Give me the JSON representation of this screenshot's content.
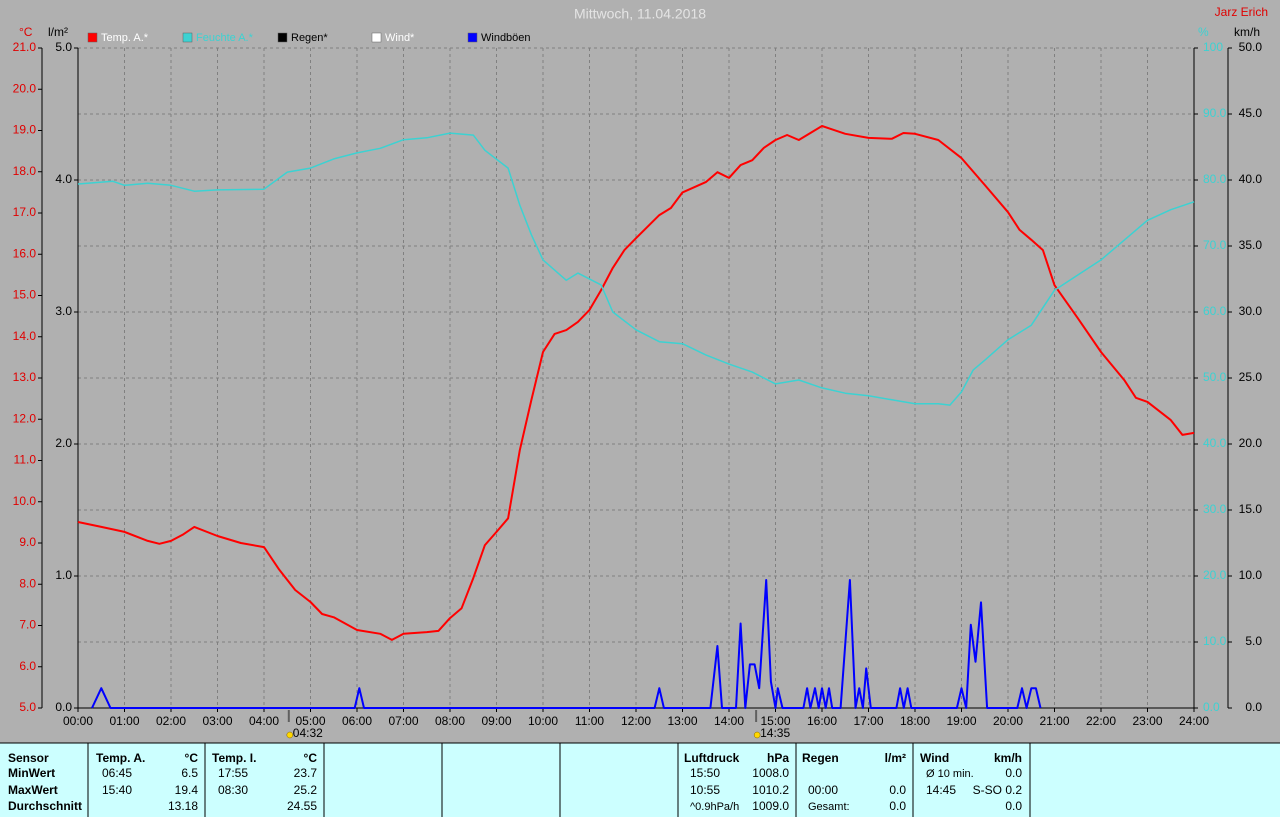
{
  "chart_data": {
    "type": "line",
    "title": "Mittwoch, 11.04.2018",
    "author": "Jarz Erich",
    "y_unit": "°C",
    "y2_unit": "%",
    "y3_unit": "l/m²",
    "y4_unit": "km/h",
    "xlim": [
      0,
      24
    ],
    "xticks": [
      {
        "value": 0,
        "label": "00:00"
      },
      {
        "value": 1,
        "label": "01:00"
      },
      {
        "value": 2,
        "label": "02:00"
      },
      {
        "value": 3,
        "label": "03:00"
      },
      {
        "value": 4,
        "label": "04:00"
      },
      {
        "value": 5,
        "label": "05:00"
      },
      {
        "value": 6,
        "label": "06:00"
      },
      {
        "value": 7,
        "label": "07:00"
      },
      {
        "value": 8,
        "label": "08:00"
      },
      {
        "value": 9,
        "label": "09:00"
      },
      {
        "value": 10,
        "label": "10:00"
      },
      {
        "value": 11,
        "label": "11:00"
      },
      {
        "value": 12,
        "label": "12:00"
      },
      {
        "value": 13,
        "label": "13:00"
      },
      {
        "value": 14,
        "label": "14:00"
      },
      {
        "value": 15,
        "label": "15:00"
      },
      {
        "value": 16,
        "label": "16:00"
      },
      {
        "value": 17,
        "label": "17:00"
      },
      {
        "value": 18,
        "label": "18:00"
      },
      {
        "value": 19,
        "label": "19:00"
      },
      {
        "value": 20,
        "label": "20:00"
      },
      {
        "value": 21,
        "label": "21:00"
      },
      {
        "value": 22,
        "label": "22:00"
      },
      {
        "value": 23,
        "label": "23:00"
      },
      {
        "value": 24,
        "label": "24:00"
      }
    ],
    "ylim": [
      5,
      21
    ],
    "yticks": [
      {
        "value": 5,
        "label": "5.0"
      },
      {
        "value": 6,
        "label": "6.0"
      },
      {
        "value": 7,
        "label": "7.0"
      },
      {
        "value": 8,
        "label": "8.0"
      },
      {
        "value": 9,
        "label": "9.0"
      },
      {
        "value": 10,
        "label": "10.0"
      },
      {
        "value": 11,
        "label": "11.0"
      },
      {
        "value": 12,
        "label": "12.0"
      },
      {
        "value": 13,
        "label": "13.0"
      },
      {
        "value": 14,
        "label": "14.0"
      },
      {
        "value": 15,
        "label": "15.0"
      },
      {
        "value": 16,
        "label": "16.0"
      },
      {
        "value": 17,
        "label": "17.0"
      },
      {
        "value": 18,
        "label": "18.0"
      },
      {
        "value": 19,
        "label": "19.0"
      },
      {
        "value": 20,
        "label": "20.0"
      },
      {
        "value": 21,
        "label": "21.0"
      }
    ],
    "y2lim": [
      0,
      100
    ],
    "y2ticks": [
      {
        "value": 0,
        "label": "0.0"
      },
      {
        "value": 10,
        "label": "10.0"
      },
      {
        "value": 20,
        "label": "20.0"
      },
      {
        "value": 30,
        "label": "30.0"
      },
      {
        "value": 40,
        "label": "40.0"
      },
      {
        "value": 50,
        "label": "50.0"
      },
      {
        "value": 60,
        "label": "60.0"
      },
      {
        "value": 70,
        "label": "70.0"
      },
      {
        "value": 80,
        "label": "80.0"
      },
      {
        "value": 90,
        "label": "90.0"
      },
      100
    ],
    "y3lim": [
      0,
      5
    ],
    "y3ticks": [
      {
        "value": 0,
        "label": "0.0"
      },
      {
        "value": 1,
        "label": "1.0"
      },
      {
        "value": 2,
        "label": "2.0"
      },
      {
        "value": 3,
        "label": "3.0"
      },
      {
        "value": 4,
        "label": "4.0"
      },
      {
        "value": 5,
        "label": "5.0"
      }
    ],
    "y4lim": [
      0,
      50
    ],
    "y4ticks": [
      {
        "value": 0,
        "label": "0.0"
      },
      {
        "value": 5,
        "label": "5.0"
      },
      {
        "value": 10,
        "label": "10.0"
      },
      {
        "value": 15,
        "label": "15.0"
      },
      {
        "value": 20,
        "label": "20.0"
      },
      {
        "value": 25,
        "label": "25.0"
      },
      {
        "value": 30,
        "label": "30.0"
      },
      {
        "value": 35,
        "label": "35.0"
      },
      {
        "value": 40,
        "label": "40.0"
      },
      {
        "value": 45,
        "label": "45.0"
      },
      {
        "value": 50,
        "label": "50.0"
      }
    ],
    "grid": true,
    "annotations": [
      {
        "x": 4.5333,
        "label": "04:32"
      },
      {
        "x": 14.5833,
        "label": "14:35"
      }
    ],
    "series": [
      {
        "name": "Temp. A.*",
        "color": "#ff0000",
        "axis": "y",
        "x": [
          0,
          0.5,
          1,
          1.5,
          1.75,
          2,
          2.25,
          2.5,
          3,
          3.5,
          4,
          4.33,
          4.67,
          5,
          5.25,
          5.5,
          6,
          6.5,
          6.75,
          7,
          7.5,
          7.75,
          8,
          8.25,
          8.5,
          8.75,
          9,
          9.25,
          9.5,
          9.75,
          10,
          10.25,
          10.5,
          10.75,
          11,
          11.25,
          11.5,
          11.75,
          12,
          12.5,
          12.75,
          13,
          13.5,
          13.75,
          14,
          14.25,
          14.5,
          14.75,
          15,
          15.25,
          15.5,
          15.75,
          16,
          16.5,
          17,
          17.5,
          17.75,
          18,
          18.5,
          19,
          19.5,
          20,
          20.25,
          20.5,
          20.75,
          21,
          21.5,
          22,
          22.5,
          22.75,
          23,
          23.5,
          23.75,
          24
        ],
        "values": [
          9.51,
          9.39,
          9.27,
          9.05,
          8.98,
          9.05,
          9.2,
          9.39,
          9.17,
          9.0,
          8.9,
          8.35,
          7.86,
          7.57,
          7.28,
          7.2,
          6.89,
          6.8,
          6.65,
          6.8,
          6.84,
          6.87,
          7.18,
          7.42,
          8.15,
          8.95,
          9.27,
          9.6,
          11.25,
          12.47,
          13.63,
          14.07,
          14.16,
          14.36,
          14.65,
          15.13,
          15.67,
          16.1,
          16.39,
          16.95,
          17.12,
          17.5,
          17.75,
          17.99,
          17.85,
          18.16,
          18.28,
          18.58,
          18.77,
          18.89,
          18.77,
          18.94,
          19.11,
          18.92,
          18.82,
          18.8,
          18.94,
          18.92,
          18.77,
          18.33,
          17.68,
          17.02,
          16.59,
          16.35,
          16.1,
          15.25,
          14.45,
          13.63,
          12.95,
          12.52,
          12.42,
          11.98,
          11.62,
          11.67
        ]
      },
      {
        "name": "Feuchte A.*",
        "color": "#3cd2d2",
        "axis": "y2",
        "x": [
          0,
          0.75,
          1,
          1.5,
          2,
          2.5,
          3,
          4,
          4.5,
          5,
          5.5,
          6,
          6.5,
          7,
          7.5,
          8,
          8.5,
          8.75,
          9.25,
          9.5,
          9.75,
          10,
          10.5,
          10.75,
          11.25,
          11.5,
          12,
          12.5,
          13,
          13.5,
          14,
          14.5,
          15,
          15.5,
          16,
          16.5,
          17,
          17.5,
          18,
          18.5,
          18.75,
          19,
          19.25,
          19.5,
          20,
          20.5,
          21,
          21.5,
          22,
          22.5,
          23,
          23.5,
          24
        ],
        "values": [
          79.4,
          79.8,
          79.2,
          79.5,
          79.2,
          78.3,
          78.5,
          78.6,
          81.2,
          81.8,
          83.2,
          84.1,
          84.8,
          86.1,
          86.4,
          87.1,
          86.8,
          84.5,
          81.8,
          76.2,
          71.7,
          67.9,
          64.8,
          65.9,
          64.1,
          60,
          57.3,
          55.5,
          55.2,
          53.5,
          52.1,
          50.9,
          49.1,
          49.7,
          48.5,
          47.7,
          47.3,
          46.7,
          46.1,
          46.1,
          45.9,
          47.9,
          51.2,
          52.7,
          55.8,
          58,
          63.3,
          65.6,
          67.9,
          70.9,
          73.9,
          75.5,
          76.7
        ]
      },
      {
        "name": "Regen*",
        "color": "#000000",
        "axis": "y3",
        "x": [],
        "values": []
      },
      {
        "name": "Wind*",
        "color": "#ffffff",
        "axis": "y4",
        "x": [],
        "values": []
      },
      {
        "name": "Windböen",
        "color": "#0000ff",
        "axis": "y4",
        "x": [
          0.3,
          0.5,
          0.7,
          5.95,
          6.05,
          6.15,
          12.4,
          12.5,
          12.6,
          13.6,
          13.75,
          13.85,
          14.15,
          14.25,
          14.35,
          14.45,
          14.55,
          14.65,
          14.8,
          14.9,
          15.0,
          15.05,
          15.15,
          15.6,
          15.68,
          15.75,
          15.85,
          15.93,
          16.0,
          16.08,
          16.15,
          16.22,
          16.4,
          16.6,
          16.72,
          16.8,
          16.88,
          16.95,
          17.05,
          17.6,
          17.68,
          17.76,
          17.84,
          17.92,
          18.9,
          19.0,
          19.1,
          19.2,
          19.3,
          19.42,
          19.55,
          20.2,
          20.3,
          20.4,
          20.5,
          20.6,
          20.7
        ],
        "values": [
          0,
          1.5,
          0,
          0,
          1.5,
          0,
          0,
          1.5,
          0,
          0,
          4.7,
          0,
          0,
          6.4,
          0,
          3.3,
          3.3,
          1.5,
          9.7,
          2,
          0,
          1.5,
          0,
          0,
          1.5,
          0,
          1.5,
          0,
          1.5,
          0,
          1.5,
          0,
          0,
          9.7,
          0,
          1.5,
          0,
          3,
          0,
          0,
          1.5,
          0,
          1.5,
          0,
          0,
          1.5,
          0,
          6.3,
          3.5,
          8,
          0,
          0,
          1.5,
          0,
          1.5,
          1.5,
          0
        ]
      }
    ]
  },
  "table": {
    "row_labels": [
      "Sensor",
      "MinWert",
      "MaxWert",
      "Durchschnitt"
    ],
    "groups": [
      {
        "name": "Temp. A.",
        "unit": "°C",
        "rows": [
          [
            "06:45",
            "6.5"
          ],
          [
            "15:40",
            "19.4"
          ],
          [
            null,
            "13.18"
          ]
        ]
      },
      {
        "name": "Temp. I.",
        "unit": "°C",
        "rows": [
          [
            "17:55",
            "23.7"
          ],
          [
            "08:30",
            "25.2"
          ],
          [
            null,
            "24.55"
          ]
        ]
      },
      {
        "name": "Luftdruck",
        "unit": "hPa",
        "rows": [
          [
            "15:50",
            "1008.0"
          ],
          [
            "10:55",
            "1010.2"
          ],
          [
            "^0.9hPa/h",
            "1009.0"
          ]
        ]
      },
      {
        "name": "Regen",
        "unit": "l/m²",
        "rows": [
          [
            null,
            null
          ],
          [
            "00:00",
            "0.0"
          ],
          [
            "Gesamt:",
            "0.0"
          ]
        ]
      },
      {
        "name": "Wind",
        "unit": "km/h",
        "rows": [
          [
            "Ø 10 min.",
            "0.0"
          ],
          [
            "14:45",
            "S-SO 0.2"
          ],
          [
            null,
            "0.0"
          ]
        ]
      }
    ]
  }
}
